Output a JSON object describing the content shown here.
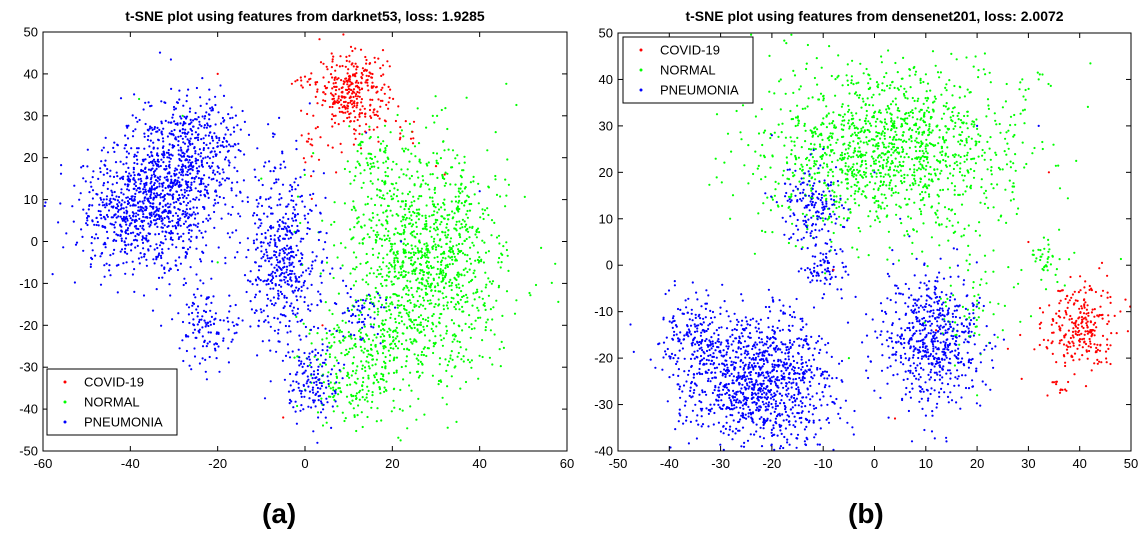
{
  "chart_data": [
    {
      "type": "scatter",
      "title": "t-SNE plot using features from darknet53, loss: 1.9285",
      "caption": "(a)",
      "xlim": [
        -60,
        60
      ],
      "ylim": [
        -50,
        50
      ],
      "xticks": [
        -60,
        -40,
        -20,
        0,
        20,
        40,
        60
      ],
      "yticks": [
        -50,
        -40,
        -30,
        -20,
        -10,
        0,
        10,
        20,
        30,
        40,
        50
      ],
      "grid": false,
      "legend_position": "bottom-left",
      "series": [
        {
          "name": "COVID-19",
          "color": "#ff0000",
          "clusters": [
            {
              "cx": 11,
              "cy": 36,
              "sx": 4,
              "sy": 4.5,
              "n": 320
            },
            {
              "cx": 0,
              "cy": 38,
              "sx": 1.2,
              "sy": 1,
              "n": 12
            },
            {
              "cx": 2,
              "cy": 24,
              "sx": 3,
              "sy": 4,
              "n": 25
            },
            {
              "cx": 24,
              "cy": 26,
              "sx": 1.5,
              "sy": 2,
              "n": 10
            }
          ],
          "points": [
            [
              -20,
              40
            ],
            [
              14,
              28
            ],
            [
              30,
              18
            ],
            [
              4,
              -20
            ],
            [
              32,
              16
            ],
            [
              -5,
              -42
            ]
          ]
        },
        {
          "name": "NORMAL",
          "color": "#00ff00",
          "clusters": [
            {
              "cx": 27,
              "cy": -5,
              "sx": 9,
              "sy": 14,
              "n": 1300
            },
            {
              "cx": 12,
              "cy": -30,
              "sx": 6,
              "sy": 7,
              "n": 250
            },
            {
              "cx": 15,
              "cy": 21,
              "sx": 2,
              "sy": 3,
              "n": 40
            }
          ],
          "points": [
            [
              -38,
              34
            ],
            [
              -28,
              30
            ],
            [
              -20,
              -5
            ],
            [
              -10,
              15
            ],
            [
              6,
              4
            ],
            [
              -2,
              -18
            ]
          ]
        },
        {
          "name": "PNEUMONIA",
          "color": "#0000ff",
          "clusters": [
            {
              "cx": -36,
              "cy": 8,
              "sx": 8,
              "sy": 8,
              "n": 900
            },
            {
              "cx": -27,
              "cy": 22,
              "sx": 6,
              "sy": 7,
              "n": 500
            },
            {
              "cx": -5,
              "cy": -3,
              "sx": 4.5,
              "sy": 11,
              "n": 500
            },
            {
              "cx": -22,
              "cy": -20,
              "sx": 4,
              "sy": 5,
              "n": 130
            },
            {
              "cx": 2,
              "cy": -33,
              "sx": 3,
              "sy": 5,
              "n": 140
            },
            {
              "cx": 13,
              "cy": -17,
              "sx": 3,
              "sy": 3,
              "n": 60
            }
          ],
          "points": [
            [
              14,
              26
            ],
            [
              40,
              12
            ],
            [
              22,
              0
            ]
          ]
        }
      ]
    },
    {
      "type": "scatter",
      "title": "t-SNE plot using features from densenet201, loss: 2.0072",
      "caption": "(b)",
      "xlim": [
        -50,
        50
      ],
      "ylim": [
        -40,
        50
      ],
      "xticks": [
        -50,
        -40,
        -30,
        -20,
        -10,
        0,
        10,
        20,
        30,
        40,
        50
      ],
      "yticks": [
        -40,
        -30,
        -20,
        -10,
        0,
        10,
        20,
        30,
        40,
        50
      ],
      "grid": false,
      "legend_position": "top-left",
      "series": [
        {
          "name": "COVID-19",
          "color": "#ff0000",
          "clusters": [
            {
              "cx": 40,
              "cy": -13,
              "sx": 3.5,
              "sy": 5,
              "n": 260
            },
            {
              "cx": 37,
              "cy": -26,
              "sx": 1,
              "sy": 1,
              "n": 12
            }
          ],
          "points": [
            [
              34,
              20
            ],
            [
              30,
              5
            ],
            [
              -8,
              -1
            ],
            [
              4,
              -33
            ],
            [
              12,
              -14
            ],
            [
              26,
              -18
            ]
          ]
        },
        {
          "name": "NORMAL",
          "color": "#00ff00",
          "clusters": [
            {
              "cx": 3,
              "cy": 25,
              "sx": 13,
              "sy": 9,
              "n": 1400
            },
            {
              "cx": 33,
              "cy": 1,
              "sx": 2,
              "sy": 2,
              "n": 40
            },
            {
              "cx": 18,
              "cy": -10,
              "sx": 4,
              "sy": 5,
              "n": 60
            }
          ],
          "points": [
            [
              -5,
              -20
            ],
            [
              25,
              -14
            ],
            [
              28,
              -4
            ],
            [
              20,
              -28
            ]
          ]
        },
        {
          "name": "PNEUMONIA",
          "color": "#0000ff",
          "clusters": [
            {
              "cx": -22,
              "cy": -25,
              "sx": 7,
              "sy": 7,
              "n": 1100
            },
            {
              "cx": -35,
              "cy": -16,
              "sx": 3.5,
              "sy": 5,
              "n": 200
            },
            {
              "cx": 11,
              "cy": -16,
              "sx": 4.5,
              "sy": 7,
              "n": 600
            },
            {
              "cx": -10,
              "cy": -1,
              "sx": 2,
              "sy": 2.5,
              "n": 80
            },
            {
              "cx": -12,
              "cy": 13,
              "sx": 3,
              "sy": 4,
              "n": 160
            }
          ],
          "points": [
            [
              -20,
              28
            ],
            [
              -10,
              25
            ],
            [
              0,
              20
            ],
            [
              20,
              30
            ],
            [
              32,
              30
            ],
            [
              5,
              10
            ]
          ]
        }
      ]
    }
  ]
}
